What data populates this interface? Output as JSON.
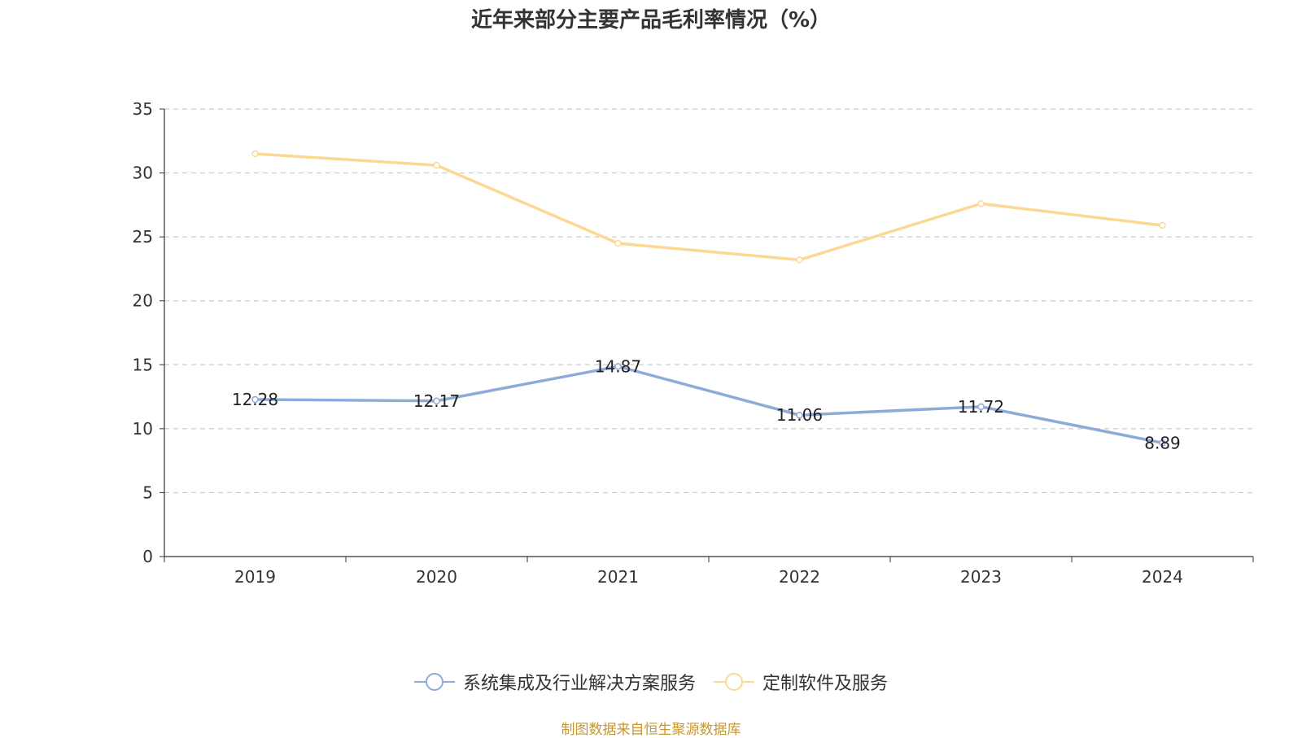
{
  "title": "近年来部分主要产品毛利率情况（%）",
  "source": "制图数据来自恒生聚源数据库",
  "colors": {
    "series1": "#8eabd8",
    "series2": "#fdd895",
    "source": "#c8962e",
    "grid": "#cccccc",
    "axis": "#333333"
  },
  "chart_data": {
    "type": "line",
    "title": "近年来部分主要产品毛利率情况（%）",
    "x": [
      "2019",
      "2020",
      "2021",
      "2022",
      "2023",
      "2024"
    ],
    "ylim": [
      0,
      35
    ],
    "yticks": [
      0,
      5,
      10,
      15,
      20,
      25,
      30,
      35
    ],
    "grid": true,
    "legend_position": "bottom",
    "series": [
      {
        "name": "系统集成及行业解决方案服务",
        "values": [
          12.28,
          12.17,
          14.87,
          11.06,
          11.72,
          8.89
        ],
        "labels": [
          "12.28",
          "12.17",
          "14.87",
          "11.06",
          "11.72",
          "8.89"
        ]
      },
      {
        "name": "定制软件及服务",
        "values": [
          31.5,
          30.6,
          24.5,
          23.2,
          27.6,
          25.9
        ]
      }
    ]
  }
}
